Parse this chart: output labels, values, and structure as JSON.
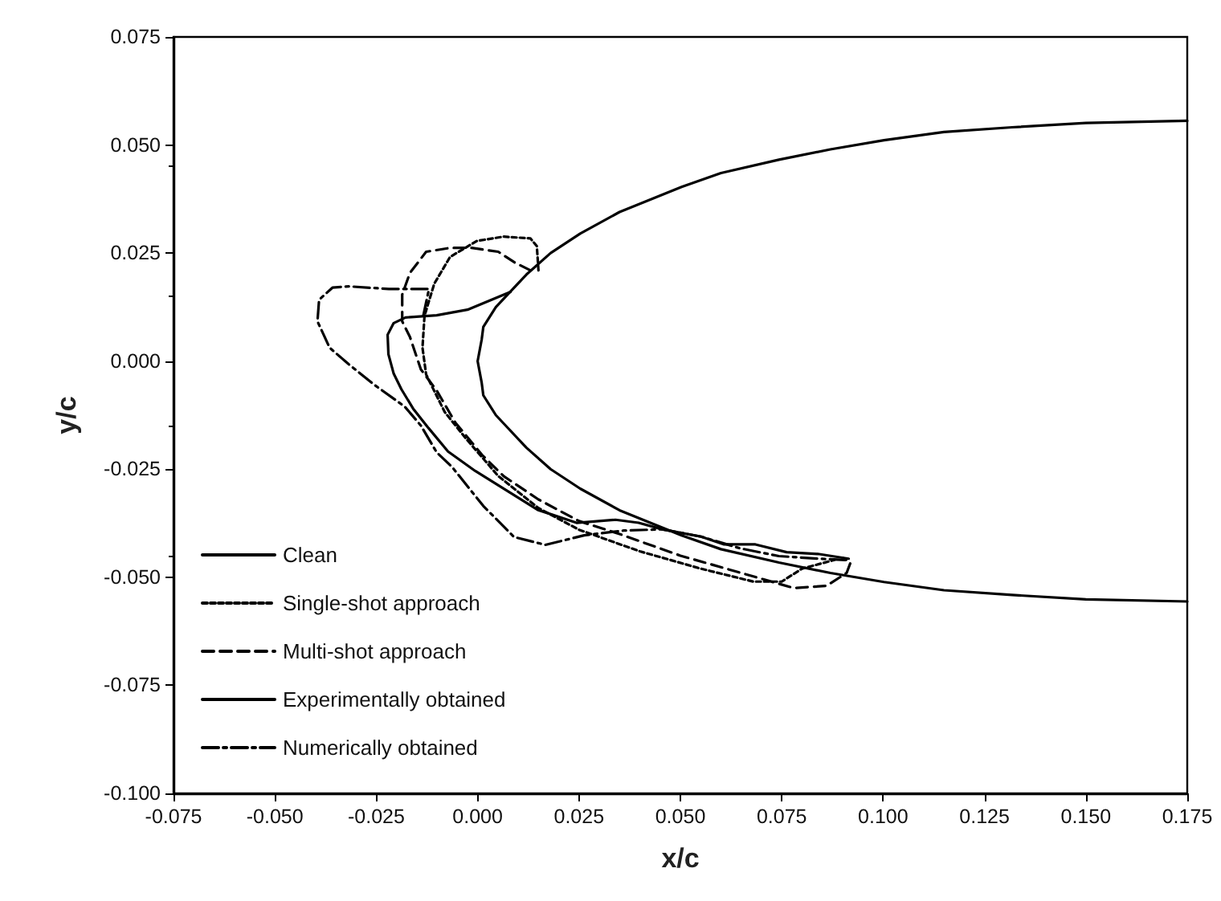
{
  "chart_data": {
    "type": "line",
    "xlabel": "x/c",
    "ylabel": "y/c",
    "xlim": [
      -0.075,
      0.175
    ],
    "ylim": [
      -0.1,
      0.075
    ],
    "xticks": [
      {
        "value": -0.075,
        "label": "-0.075"
      },
      {
        "value": -0.05,
        "label": "-0.050"
      },
      {
        "value": -0.025,
        "label": "-0.025"
      },
      {
        "value": 0,
        "label": "0.000"
      },
      {
        "value": 0.025,
        "label": "0.025"
      },
      {
        "value": 0.05,
        "label": "0.050"
      },
      {
        "value": 0.075,
        "label": "0.075"
      },
      {
        "value": 0.1,
        "label": "0.100"
      },
      {
        "value": 0.125,
        "label": "0.125"
      },
      {
        "value": 0.15,
        "label": "0.150"
      },
      {
        "value": 0.175,
        "label": "0.175"
      }
    ],
    "yticks": [
      {
        "value": -0.1,
        "label": "-0.100"
      },
      {
        "value": -0.075,
        "label": "-0.075"
      },
      {
        "value": -0.05,
        "label": "-0.050"
      },
      {
        "value": -0.025,
        "label": "-0.025"
      },
      {
        "value": 0,
        "label": "0.000"
      },
      {
        "value": 0.025,
        "label": "0.025"
      },
      {
        "value": 0.05,
        "label": "0.050"
      },
      {
        "value": 0.075,
        "label": "0.075"
      }
    ],
    "grid": false,
    "legend": "bottom left",
    "marker": "none",
    "series": [
      {
        "name": "Clean",
        "color": "#000000",
        "line_style": "solid",
        "x": [
          0.175,
          0.15,
          0.1318,
          0.115,
          0.1002,
          0.087,
          0.0743,
          0.06,
          0.0503,
          0.035,
          0.0253,
          0.018,
          0.012,
          0.0071,
          0.0045,
          0.0014,
          0.001,
          0,
          0.001,
          0.0014,
          0.0045,
          0.0071,
          0.012,
          0.018,
          0.0253,
          0.035,
          0.0503,
          0.06,
          0.0743,
          0.087,
          0.1002,
          0.115,
          0.1318,
          0.15,
          0.175
        ],
        "values": [
          0.0556,
          0.0551,
          0.0541,
          0.053,
          0.0511,
          0.049,
          0.0466,
          0.0435,
          0.0403,
          0.0345,
          0.0295,
          0.025,
          0.02,
          0.0151,
          0.0125,
          0.0079,
          0.005,
          0,
          -0.005,
          -0.0079,
          -0.0125,
          -0.0151,
          -0.02,
          -0.025,
          -0.0295,
          -0.0345,
          -0.0403,
          -0.0435,
          -0.0466,
          -0.049,
          -0.0511,
          -0.053,
          -0.0541,
          -0.0551,
          -0.0556
        ]
      },
      {
        "name": "Single-shot approach",
        "color": "#000000",
        "line_style": "dotted",
        "x": [
          0.015,
          0.0146,
          0.013,
          0.0064,
          -0.0002,
          -0.0068,
          -0.0107,
          -0.0131,
          -0.0136,
          -0.0127,
          -0.0081,
          -0.0028,
          0.0051,
          0.015,
          0.025,
          0.04,
          0.055,
          0.068,
          0.075,
          0.08,
          0.088
        ],
        "values": [
          0.021,
          0.0266,
          0.0284,
          0.0288,
          0.0278,
          0.0241,
          0.0179,
          0.0105,
          0.0031,
          -0.0031,
          -0.0118,
          -0.018,
          -0.0266,
          -0.034,
          -0.039,
          -0.044,
          -0.048,
          -0.051,
          -0.051,
          -0.048,
          -0.046
        ]
      },
      {
        "name": "Multi-shot approach",
        "color": "#000000",
        "line_style": "dashed",
        "x": [
          0.013,
          0.009,
          0.0051,
          -0.0015,
          -0.0068,
          -0.0127,
          -0.0167,
          -0.0186,
          -0.0186,
          -0.0167,
          -0.014,
          -0.0101,
          -0.0055,
          0.0011,
          0.0064,
          0.015,
          0.025,
          0.035,
          0.05,
          0.065,
          0.078,
          0.086,
          0.091,
          0.092,
          0.09
        ],
        "values": [
          0.021,
          0.0229,
          0.0253,
          0.0262,
          0.0262,
          0.0253,
          0.0204,
          0.0154,
          0.0092,
          0.0056,
          -0.0019,
          -0.0068,
          -0.0142,
          -0.0217,
          -0.0266,
          -0.032,
          -0.037,
          -0.04,
          -0.045,
          -0.049,
          -0.0525,
          -0.052,
          -0.049,
          -0.0465,
          -0.0455
        ]
      },
      {
        "name": "Experimentally obtained",
        "color": "#000000",
        "line_style": "solid",
        "x": [
          0.0081,
          -0.0025,
          -0.0101,
          -0.0178,
          -0.0207,
          -0.0222,
          -0.022,
          -0.0207,
          -0.0188,
          -0.0159,
          -0.0121,
          -0.0073,
          -0.0006,
          0.0071,
          0.0148,
          0.0244,
          0.034,
          0.0397,
          0.0455,
          0.0551,
          0.0608,
          0.0685,
          0.0762,
          0.0839,
          0.0915
        ],
        "values": [
          0.016,
          0.0119,
          0.0106,
          0.0101,
          0.0088,
          0.0061,
          0.0016,
          -0.0029,
          -0.0065,
          -0.011,
          -0.0155,
          -0.0209,
          -0.0254,
          -0.0299,
          -0.0344,
          -0.0374,
          -0.0367,
          -0.0374,
          -0.0389,
          -0.0406,
          -0.0424,
          -0.0424,
          -0.0442,
          -0.0446,
          -0.0457
        ]
      },
      {
        "name": "Numerically obtained",
        "color": "#000000",
        "line_style": "dashdot",
        "x": [
          -0.0134,
          -0.012,
          -0.0219,
          -0.0318,
          -0.0358,
          -0.0391,
          -0.0395,
          -0.0365,
          -0.0318,
          -0.0253,
          -0.018,
          -0.014,
          -0.0101,
          -0.0063,
          0.0014,
          0.009,
          0.0167,
          0.0263,
          0.0359,
          0.0455,
          0.0551,
          0.0647,
          0.0743,
          0.0839,
          0.0906
        ],
        "values": [
          0.0105,
          0.0167,
          0.0167,
          0.0173,
          0.017,
          0.0142,
          0.0092,
          0.0031,
          -0.0007,
          -0.0056,
          -0.0105,
          -0.0149,
          -0.0211,
          -0.0245,
          -0.0335,
          -0.0407,
          -0.0425,
          -0.0403,
          -0.0392,
          -0.0389,
          -0.0406,
          -0.0433,
          -0.0451,
          -0.0457,
          -0.046
        ]
      }
    ]
  }
}
